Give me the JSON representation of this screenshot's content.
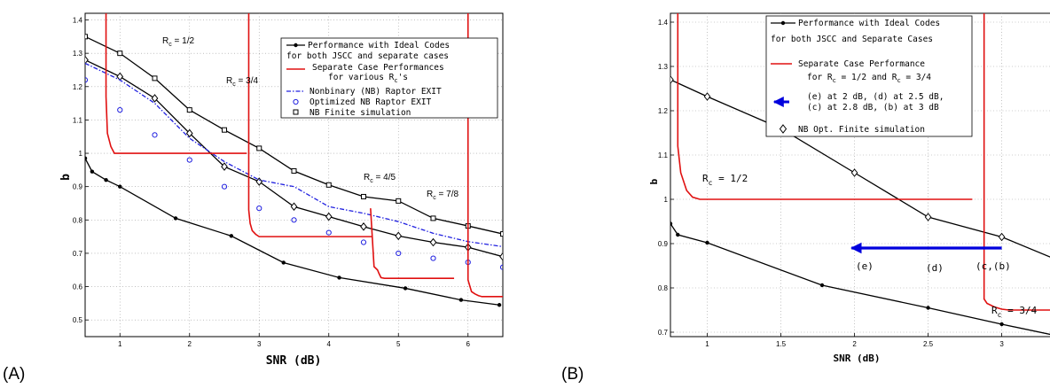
{
  "panel_labels": [
    "(A)",
    "(B)"
  ],
  "chart_data": [
    {
      "type": "line",
      "panel": "(A)",
      "xlabel": "SNR (dB)",
      "ylabel": "b",
      "xlim": [
        0.5,
        6.5
      ],
      "ylim": [
        0.45,
        1.42
      ],
      "xticks": [
        1,
        2,
        3,
        4,
        5,
        6
      ],
      "yticks": [
        0.5,
        0.6,
        0.7,
        0.8,
        0.9,
        1,
        1.1,
        1.2,
        1.3,
        1.4
      ],
      "grid": true,
      "legend_position": "top-right",
      "legend": [
        "Performance with Ideal Codes",
        "for both JSCC and separate cases",
        "Separate Case Performances",
        "for various R_c's",
        "Nonbinary (NB) Raptor EXIT",
        "Optimized NB Raptor EXIT",
        "NB Finite simulation"
      ],
      "annotations": [
        "R_c = 1/2",
        "R_c = 3/4",
        "R_c = 4/5",
        "R_c = 7/8"
      ],
      "series": [
        {
          "name": "Performance with Ideal Codes",
          "style": "black-dot",
          "x": [
            0.5,
            0.6,
            0.8,
            1.0,
            1.8,
            2.6,
            3.35,
            4.15,
            5.1,
            5.9,
            6.45
          ],
          "y": [
            0.985,
            0.945,
            0.92,
            0.9,
            0.805,
            0.752,
            0.672,
            0.627,
            0.595,
            0.56,
            0.545
          ]
        },
        {
          "name": "Performance with Ideal Codes",
          "style": "black-diamond",
          "x": [
            0.5,
            1.0,
            1.5,
            2.0,
            2.5,
            3.0,
            3.5,
            4.0,
            4.5,
            5.0,
            5.5,
            6.0,
            6.5
          ],
          "y": [
            1.28,
            1.23,
            1.165,
            1.06,
            0.96,
            0.915,
            0.84,
            0.81,
            0.78,
            0.752,
            0.733,
            0.718,
            0.69
          ]
        },
        {
          "name": "NB Finite simulation",
          "style": "black-square",
          "x": [
            0.5,
            1.0,
            1.5,
            2.0,
            2.5,
            3.0,
            3.5,
            4.0,
            4.5,
            5.0,
            5.5,
            6.0,
            6.5
          ],
          "y": [
            1.35,
            1.3,
            1.225,
            1.13,
            1.07,
            1.015,
            0.947,
            0.905,
            0.87,
            0.857,
            0.805,
            0.782,
            0.758
          ]
        },
        {
          "name": "Nonbinary (NB) Raptor EXIT",
          "style": "blue-dashdot",
          "x": [
            0.5,
            1.0,
            1.5,
            2.0,
            2.5,
            3.0,
            3.5,
            4.0,
            4.5,
            5.0,
            5.5,
            6.0,
            6.5
          ],
          "y": [
            1.27,
            1.22,
            1.15,
            1.045,
            0.975,
            0.92,
            0.9,
            0.84,
            0.82,
            0.795,
            0.76,
            0.735,
            0.72
          ]
        },
        {
          "name": "Optimized NB Raptor EXIT",
          "style": "blue-circle",
          "x": [
            0.5,
            1.0,
            1.5,
            2.0,
            2.5,
            3.0,
            3.5,
            4.0,
            4.5,
            5.0,
            5.5,
            6.0,
            6.5
          ],
          "y": [
            1.22,
            1.13,
            1.055,
            0.98,
            0.9,
            0.835,
            0.8,
            0.762,
            0.733,
            0.7,
            0.685,
            0.673,
            0.658
          ]
        },
        {
          "name": "Separate Case Performances",
          "style": "red",
          "x": [
            0.8,
            0.8,
            0.82,
            0.87,
            0.92,
            2.82
          ],
          "y": [
            1.42,
            1.17,
            1.06,
            1.02,
            1.0,
            1.0
          ]
        },
        {
          "name": "Separate Case Performances",
          "style": "red",
          "x": [
            2.85,
            2.85,
            2.87,
            2.9,
            2.95,
            3.0,
            4.62
          ],
          "y": [
            1.42,
            0.83,
            0.79,
            0.768,
            0.757,
            0.75,
            0.75
          ]
        },
        {
          "name": "Separate Case Performances",
          "style": "red",
          "x": [
            4.6,
            4.65,
            4.7,
            4.72,
            4.75,
            4.8,
            5.8
          ],
          "y": [
            0.835,
            0.66,
            0.65,
            0.64,
            0.627,
            0.625,
            0.625
          ]
        },
        {
          "name": "Separate Case Performances",
          "style": "red",
          "x": [
            6.0,
            6.0,
            6.05,
            6.1,
            6.15,
            6.2,
            6.5
          ],
          "y": [
            1.42,
            0.62,
            0.585,
            0.578,
            0.573,
            0.57,
            0.57
          ]
        }
      ]
    },
    {
      "type": "line",
      "panel": "(B)",
      "xlabel": "SNR (dB)",
      "ylabel": "b",
      "xlim": [
        0.75,
        3.4
      ],
      "ylim": [
        0.69,
        1.42
      ],
      "xticks": [
        1,
        1.5,
        2,
        2.5,
        3
      ],
      "yticks": [
        0.7,
        0.8,
        0.9,
        1,
        1.1,
        1.2,
        1.3,
        1.4
      ],
      "grid": true,
      "legend_position": "top-center",
      "legend": [
        "Performance with Ideal Codes",
        "for both JSCC and Separate Cases",
        "Separate Case Performance",
        "for R_c = 1/2 and R_c = 3/4",
        "(e) at 2 dB, (d) at 2.5 dB,",
        "(c) at 2.8 dB, (b) at 3 dB",
        "NB Opt. Finite simulation"
      ],
      "annotations": [
        "R_c = 1/2",
        "R_c = 3/4",
        "(e)",
        "(d)",
        "(c,(b)"
      ],
      "series": [
        {
          "name": "Performance with Ideal Codes",
          "style": "black-dot",
          "x": [
            0.75,
            0.8,
            1.0,
            1.78,
            2.5,
            3.0,
            3.4
          ],
          "y": [
            0.945,
            0.92,
            0.902,
            0.806,
            0.755,
            0.718,
            0.69
          ]
        },
        {
          "name": "NB Opt. Finite simulation",
          "style": "black-diamond",
          "x": [
            0.75,
            1.0,
            1.5,
            2.0,
            2.5,
            3.0,
            3.4
          ],
          "y": [
            1.27,
            1.232,
            1.16,
            1.06,
            0.96,
            0.915,
            0.86
          ]
        },
        {
          "name": "Separate Case Performance",
          "style": "red",
          "x": [
            0.8,
            0.8,
            0.82,
            0.86,
            0.9,
            0.95,
            2.8
          ],
          "y": [
            1.42,
            1.12,
            1.06,
            1.02,
            1.005,
            1.0,
            1.0
          ]
        },
        {
          "name": "Separate Case Performance",
          "style": "red",
          "x": [
            2.88,
            2.88,
            2.9,
            2.95,
            3.0,
            3.05,
            3.4
          ],
          "y": [
            1.42,
            0.775,
            0.765,
            0.757,
            0.752,
            0.75,
            0.75
          ]
        },
        {
          "name": "(e) at 2 dB, (d) at 2.5 dB,",
          "style": "blue-arrow",
          "x": [
            3.0,
            1.98
          ],
          "y": [
            0.89,
            0.89
          ]
        }
      ]
    }
  ]
}
